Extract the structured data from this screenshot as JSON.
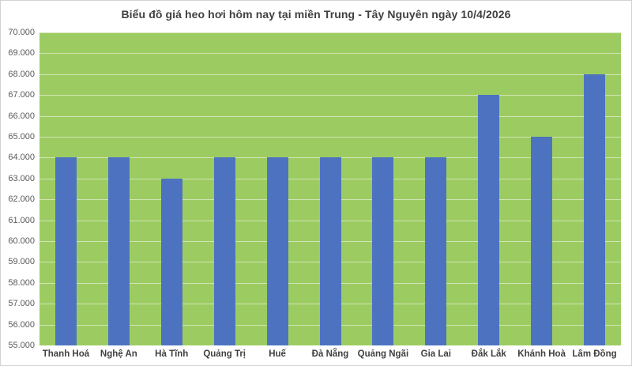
{
  "chart_data": {
    "type": "bar",
    "title": "Biểu đồ giá heo hơi hôm nay tại miền Trung - Tây Nguyên ngày 10/4/2026",
    "categories": [
      "Thanh Hoá",
      "Nghệ An",
      "Hà Tĩnh",
      "Quảng Trị",
      "Huế",
      "Đà Nẵng",
      "Quảng Ngãi",
      "Gia Lai",
      "Đắk Lắk",
      "Khánh Hoà",
      "Lâm Đồng"
    ],
    "values": [
      64000,
      64000,
      63000,
      64000,
      64000,
      64000,
      64000,
      64000,
      67000,
      65000,
      68000
    ],
    "xlabel": "",
    "ylabel": "",
    "ylim": [
      55000,
      70000
    ],
    "ytick_step": 1000,
    "ytick_labels": [
      "55.000",
      "56.000",
      "57.000",
      "58.000",
      "59.000",
      "60.000",
      "61.000",
      "62.000",
      "63.000",
      "64.000",
      "65.000",
      "66.000",
      "67.000",
      "68.000",
      "69.000",
      "70.000"
    ],
    "grid": "horizontal",
    "legend_position": "none",
    "colors": {
      "bar": "#4d73c0",
      "plot_background": "#9ccc61",
      "gridline": "#d2e4b6",
      "title_text": "#404040",
      "ytick_text": "#595959",
      "xtick_text": "#404040",
      "chart_border": "#d2d2d2",
      "chart_background": "#ffffff"
    }
  }
}
